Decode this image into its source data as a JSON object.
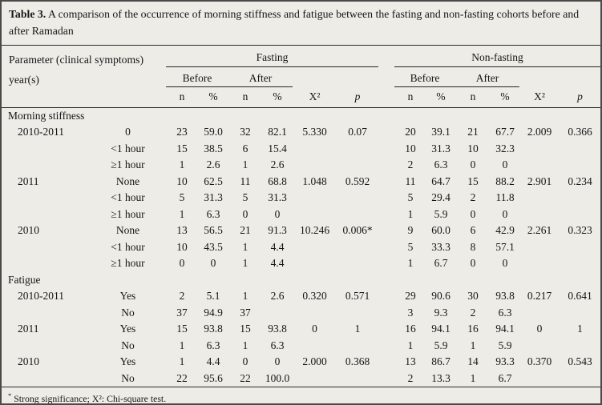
{
  "title": {
    "bold": "Table 3.",
    "rest": " A comparison of the occurrence of morning stiffness and fatigue between the fasting and non-fasting cohorts before and after Ramadan"
  },
  "header": {
    "param_line1": "Parameter (clinical symptoms)",
    "param_line2": "year(s)",
    "groups": {
      "fasting": "Fasting",
      "non_fasting": "Non-fasting"
    },
    "subgroups": {
      "before": "Before",
      "after": "After"
    },
    "cols": {
      "n": "n",
      "pct": "%",
      "chi": "X²",
      "p": "p"
    }
  },
  "sections": [
    {
      "label": "Morning stiffness",
      "rows": [
        {
          "year": "2010-2011",
          "category": "0",
          "values": [
            "23",
            "59.0",
            "32",
            "82.1",
            "5.330",
            "0.07",
            "20",
            "39.1",
            "21",
            "67.7",
            "2.009",
            "0.366"
          ]
        },
        {
          "year": "",
          "category": "<1 hour",
          "values": [
            "15",
            "38.5",
            "6",
            "15.4",
            "",
            "",
            "10",
            "31.3",
            "10",
            "32.3",
            "",
            ""
          ]
        },
        {
          "year": "",
          "category": "≥1 hour",
          "values": [
            "1",
            "2.6",
            "1",
            "2.6",
            "",
            "",
            "2",
            "6.3",
            "0",
            "0",
            "",
            ""
          ]
        },
        {
          "year": "2011",
          "category": "None",
          "values": [
            "10",
            "62.5",
            "11",
            "68.8",
            "1.048",
            "0.592",
            "11",
            "64.7",
            "15",
            "88.2",
            "2.901",
            "0.234"
          ]
        },
        {
          "year": "",
          "category": "<1 hour",
          "values": [
            "5",
            "31.3",
            "5",
            "31.3",
            "",
            "",
            "5",
            "29.4",
            "2",
            "11.8",
            "",
            ""
          ]
        },
        {
          "year": "",
          "category": "≥1 hour",
          "values": [
            "1",
            "6.3",
            "0",
            "0",
            "",
            "",
            "1",
            "5.9",
            "0",
            "0",
            "",
            ""
          ]
        },
        {
          "year": "2010",
          "category": "None",
          "values": [
            "13",
            "56.5",
            "21",
            "91.3",
            "10.246",
            "0.006*",
            "9",
            "60.0",
            "6",
            "42.9",
            "2.261",
            "0.323"
          ]
        },
        {
          "year": "",
          "category": "<1 hour",
          "values": [
            "10",
            "43.5",
            "1",
            "4.4",
            "",
            "",
            "5",
            "33.3",
            "8",
            "57.1",
            "",
            ""
          ]
        },
        {
          "year": "",
          "category": "≥1 hour",
          "values": [
            "0",
            "0",
            "1",
            "4.4",
            "",
            "",
            "1",
            "6.7",
            "0",
            "0",
            "",
            ""
          ]
        }
      ]
    },
    {
      "label": "Fatigue",
      "rows": [
        {
          "year": "2010-2011",
          "category": "Yes",
          "values": [
            "2",
            "5.1",
            "1",
            "2.6",
            "0.320",
            "0.571",
            "29",
            "90.6",
            "30",
            "93.8",
            "0.217",
            "0.641"
          ]
        },
        {
          "year": "",
          "category": "No",
          "values": [
            "37",
            "94.9",
            "37",
            "",
            "",
            "",
            "3",
            "9.3",
            "2",
            "6.3",
            "",
            ""
          ]
        },
        {
          "year": "2011",
          "category": "Yes",
          "values": [
            "15",
            "93.8",
            "15",
            "93.8",
            "0",
            "1",
            "16",
            "94.1",
            "16",
            "94.1",
            "0",
            "1"
          ]
        },
        {
          "year": "",
          "category": "No",
          "values": [
            "1",
            "6.3",
            "1",
            "6.3",
            "",
            "",
            "1",
            "5.9",
            "1",
            "5.9",
            "",
            ""
          ]
        },
        {
          "year": "2010",
          "category": "Yes",
          "values": [
            "1",
            "4.4",
            "0",
            "0",
            "2.000",
            "0.368",
            "13",
            "86.7",
            "14",
            "93.3",
            "0.370",
            "0.543"
          ]
        },
        {
          "year": "",
          "category": "No",
          "values": [
            "22",
            "95.6",
            "22",
            "100.0",
            "",
            "",
            "2",
            "13.3",
            "1",
            "6.7",
            "",
            ""
          ]
        }
      ]
    }
  ],
  "footnote": {
    "marker": "*",
    "text": "Strong significance; X²: Chi-square test."
  },
  "colors": {
    "background": "#edece7",
    "text": "#161616",
    "rule": "#2b2b2b",
    "frame": "#4a4a4a"
  }
}
